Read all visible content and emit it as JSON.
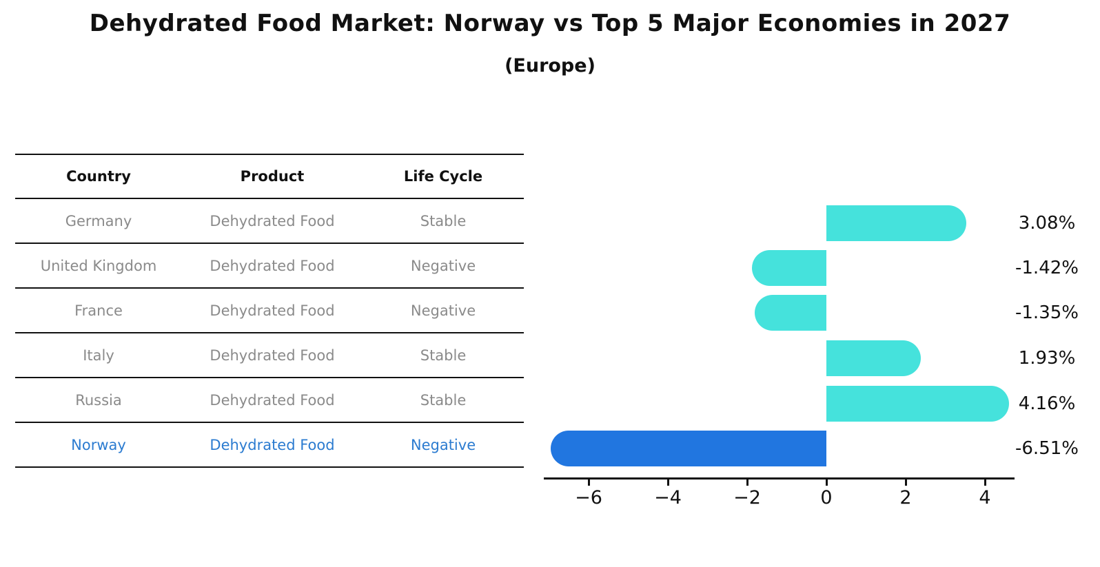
{
  "title": "Dehydrated Food Market: Norway vs Top 5 Major Economies in 2027",
  "subtitle": "(Europe)",
  "table": {
    "headers": [
      "Country",
      "Product",
      "Life Cycle"
    ],
    "rows": [
      {
        "country": "Germany",
        "product": "Dehydrated Food",
        "life_cycle": "Stable",
        "highlight": false
      },
      {
        "country": "United Kingdom",
        "product": "Dehydrated Food",
        "life_cycle": "Negative",
        "highlight": false
      },
      {
        "country": "France",
        "product": "Dehydrated Food",
        "life_cycle": "Negative",
        "highlight": false
      },
      {
        "country": "Italy",
        "product": "Dehydrated Food",
        "life_cycle": "Stable",
        "highlight": false
      },
      {
        "country": "Russia",
        "product": "Dehydrated Food",
        "life_cycle": "Stable",
        "highlight": false
      },
      {
        "country": "Norway",
        "product": "Dehydrated Food",
        "life_cycle": "Negative",
        "highlight": true
      }
    ]
  },
  "chart_data": {
    "type": "bar",
    "orientation": "horizontal",
    "title": "Dehydrated Food Market: Norway vs Top 5 Major Economies in 2027",
    "subtitle": "(Europe)",
    "categories": [
      "Germany",
      "United Kingdom",
      "France",
      "Italy",
      "Russia",
      "Norway"
    ],
    "values": [
      3.08,
      -1.42,
      -1.35,
      1.93,
      4.16,
      -6.51
    ],
    "value_labels": [
      "3.08%",
      "-1.42%",
      "-1.35%",
      "1.93%",
      "4.16%",
      "-6.51%"
    ],
    "unit": "%",
    "x_ticks": [
      -6,
      -4,
      -2,
      0,
      2,
      4
    ],
    "x_tick_labels": [
      "−6",
      "−4",
      "−2",
      "0",
      "2",
      "4"
    ],
    "xlim": [
      -7.1,
      4.75
    ],
    "grid": false,
    "legend": false,
    "bar_color": "#45e2dc",
    "highlight_color": "#2176e0",
    "highlight_index": 5
  }
}
